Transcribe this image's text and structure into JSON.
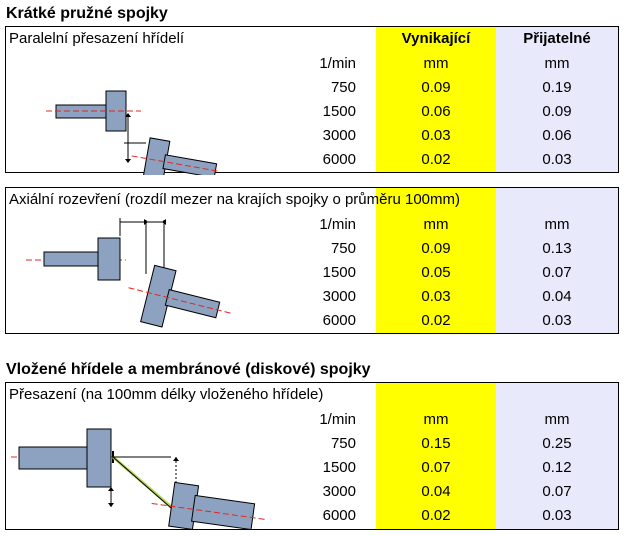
{
  "sections": [
    {
      "heading": "Krátké pružné spojky",
      "caption": "Paralelní přesazení hřídelí",
      "col_headers": {
        "excellent": "Vynikající",
        "acceptable": "Přijatelné"
      },
      "unit_row": {
        "rpm": "1/min",
        "excellent": "mm",
        "acceptable": "mm"
      },
      "rows": [
        {
          "rpm": "750",
          "excellent": "0.09",
          "acceptable": "0.19"
        },
        {
          "rpm": "1500",
          "excellent": "0.06",
          "acceptable": "0.09"
        },
        {
          "rpm": "3000",
          "excellent": "0.03",
          "acceptable": "0.06"
        },
        {
          "rpm": "6000",
          "excellent": "0.02",
          "acceptable": "0.03"
        }
      ]
    },
    {
      "caption": "Axiální rozevření (rozdíl mezer na krajích spojky o průměru 100mm)",
      "unit_row": {
        "rpm": "1/min",
        "excellent": "mm",
        "acceptable": "mm"
      },
      "rows": [
        {
          "rpm": "750",
          "excellent": "0.09",
          "acceptable": "0.13"
        },
        {
          "rpm": "1500",
          "excellent": "0.05",
          "acceptable": "0.07"
        },
        {
          "rpm": "3000",
          "excellent": "0.03",
          "acceptable": "0.04"
        },
        {
          "rpm": "6000",
          "excellent": "0.02",
          "acceptable": "0.03"
        }
      ]
    },
    {
      "heading": "Vložené hřídele a membránové (diskové) spojky",
      "caption": "Přesazení (na 100mm délky vloženého hřídele)",
      "unit_row": {
        "rpm": "1/min",
        "excellent": "mm",
        "acceptable": "mm"
      },
      "rows": [
        {
          "rpm": "750",
          "excellent": "0.15",
          "acceptable": "0.25"
        },
        {
          "rpm": "1500",
          "excellent": "0.07",
          "acceptable": "0.12"
        },
        {
          "rpm": "3000",
          "excellent": "0.04",
          "acceptable": "0.07"
        },
        {
          "rpm": "6000",
          "excellent": "0.02",
          "acceptable": "0.03"
        }
      ]
    }
  ],
  "colors": {
    "highlight": "#ffff00",
    "acceptable_bg": "#e9e9fc",
    "shaft": "#8ca2c0",
    "centerline": "#e0281e",
    "spacer": "#b8d65a"
  }
}
